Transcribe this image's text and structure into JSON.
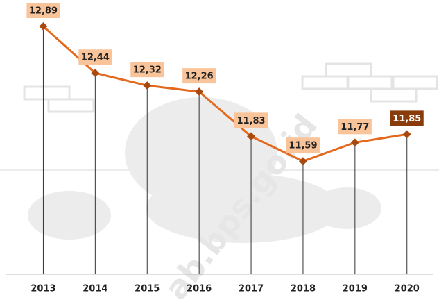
{
  "chart_data": {
    "type": "line",
    "categories": [
      "2013",
      "2014",
      "2015",
      "2016",
      "2017",
      "2018",
      "2019",
      "2020"
    ],
    "values": [
      12.89,
      12.44,
      12.32,
      12.26,
      11.83,
      11.59,
      11.77,
      11.85
    ],
    "value_labels": [
      "12,89",
      "12,44",
      "12,32",
      "12,26",
      "11,83",
      "11,59",
      "11,77",
      "11,85"
    ],
    "color": "#e2691e",
    "marker_color": "#a84a10",
    "label_fills": [
      "#f9c49a",
      "#f9c49a",
      "#f9c49a",
      "#f9c49a",
      "#f9c49a",
      "#f9c49a",
      "#f9c49a",
      "#8a3b0c"
    ],
    "label_text_colors": [
      "#222222",
      "#222222",
      "#222222",
      "#222222",
      "#222222",
      "#222222",
      "#222222",
      "#ffffff"
    ],
    "ylim": [
      10.5,
      13.0
    ],
    "drop_lines": true,
    "watermark": "ab.bps.go.id"
  }
}
